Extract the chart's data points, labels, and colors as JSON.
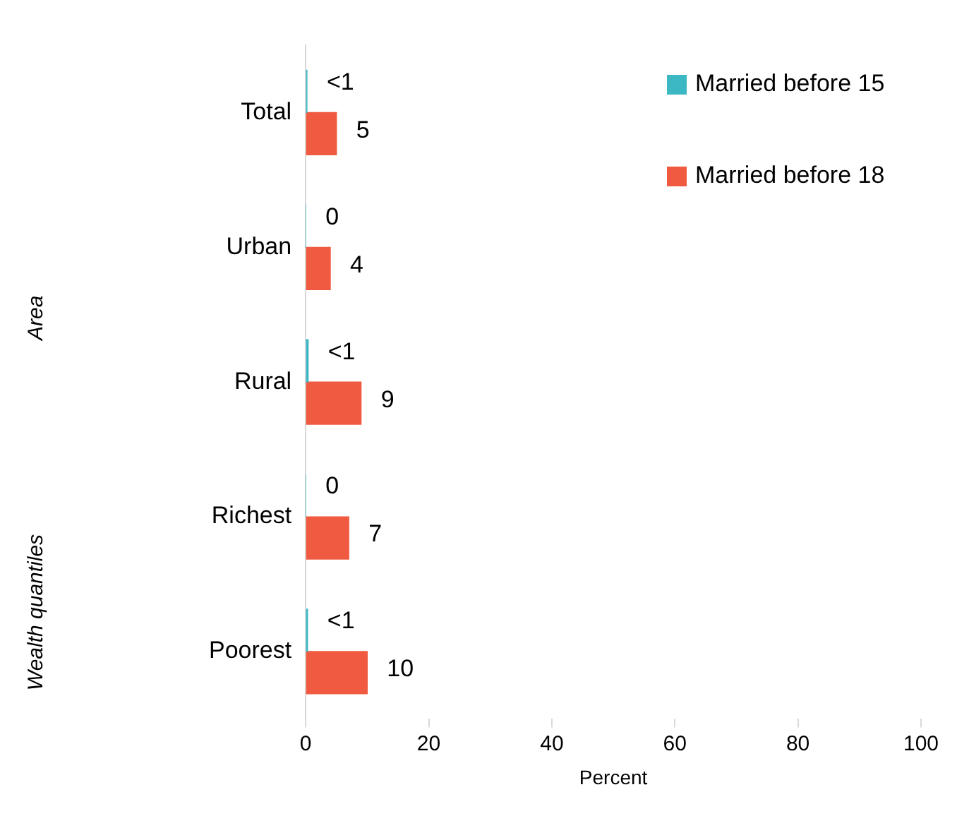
{
  "chart_data": {
    "type": "bar",
    "orientation": "horizontal",
    "categories": [
      "Total",
      "Urban",
      "Rural",
      "Richest",
      "Poorest"
    ],
    "series": [
      {
        "name": "Married before 15",
        "color": "#3cb8c4",
        "values": [
          0.2,
          0,
          0.4,
          0,
          0.3
        ],
        "value_labels": [
          "<1",
          "0",
          "<1",
          "0",
          "<1"
        ]
      },
      {
        "name": "Married before 18",
        "color": "#f05a40",
        "values": [
          5,
          4,
          9,
          7,
          10
        ],
        "value_labels": [
          "5",
          "4",
          "9",
          "7",
          "10"
        ]
      }
    ],
    "xlim": [
      0,
      100
    ],
    "xticks": [
      0,
      20,
      40,
      60,
      80,
      100
    ],
    "xlabel": "Percent",
    "grid": false,
    "legend": "top right",
    "annotations": [
      "Area",
      "Wealth quantiles"
    ]
  }
}
